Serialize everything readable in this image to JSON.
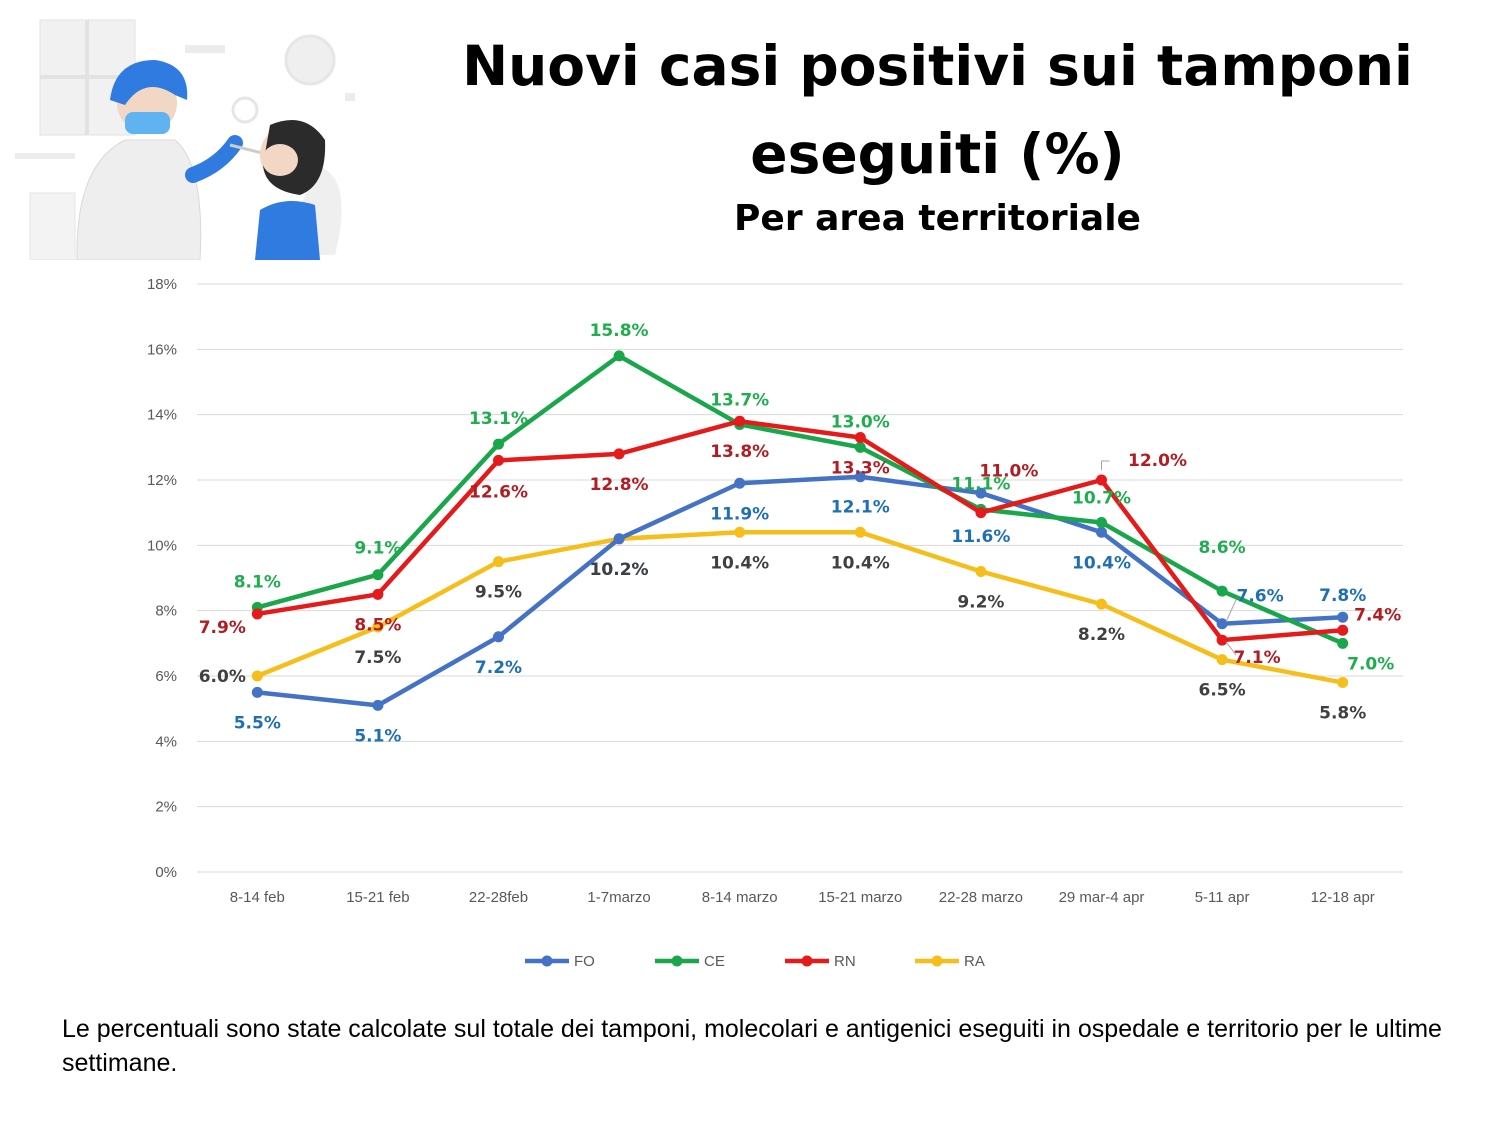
{
  "title": "Nuovi casi positivi sui tamponi eseguiti (%)",
  "subtitle": "Per area territoriale",
  "footnote": "Le percentuali sono state calcolate sul totale dei tamponi, molecolari e antigenici eseguiti in ospedale e territorio per le ultime settimane.",
  "chart_data": {
    "type": "line",
    "title": "Nuovi casi positivi sui tamponi eseguiti (%)",
    "subtitle": "Per area territoriale",
    "xlabel": "",
    "ylabel": "",
    "ylim": [
      0,
      18
    ],
    "yticks": [
      "0%",
      "2%",
      "4%",
      "6%",
      "8%",
      "10%",
      "12%",
      "14%",
      "16%",
      "18%"
    ],
    "grid": true,
    "legend": "bottom",
    "categories": [
      "8-14 feb",
      "15-21 feb",
      "22-28feb",
      "1-7marzo",
      "8-14 marzo",
      "15-21 marzo",
      "22-28 marzo",
      "29 mar-4 apr",
      "5-11 apr",
      "12-18 apr"
    ],
    "series": [
      {
        "name": "FO",
        "color": "#4472C4",
        "labelColor": "#1F6FB4",
        "values": [
          5.5,
          5.1,
          7.2,
          10.2,
          11.9,
          12.1,
          11.6,
          10.4,
          7.6,
          7.8
        ],
        "labels": [
          "5.5%",
          "5.1%",
          "7.2%",
          "10.2%",
          "11.9%",
          "12.1%",
          "11.6%",
          "10.4%",
          "7.6%",
          "7.8%"
        ]
      },
      {
        "name": "CE",
        "color": "#1AA64A",
        "labelColor": "#1FAE4E",
        "values": [
          8.1,
          9.1,
          13.1,
          15.8,
          13.7,
          13.0,
          11.1,
          10.7,
          8.6,
          7.0
        ],
        "labels": [
          "8.1%",
          "9.1%",
          "13.1%",
          "15.8%",
          "13.7%",
          "13.0%",
          "11.1%",
          "10.7%",
          "8.6%",
          "7.0%"
        ]
      },
      {
        "name": "RN",
        "color": "#E51A1A",
        "labelColor": "#B01E23",
        "values": [
          7.9,
          8.5,
          12.6,
          12.8,
          13.8,
          13.3,
          11.0,
          12.0,
          7.1,
          7.4
        ],
        "labels": [
          "7.9%",
          "8.5%",
          "12.6%",
          "12.8%",
          "13.8%",
          "13.3%",
          "11.0%",
          "12.0%",
          "7.1%",
          "7.4%"
        ]
      },
      {
        "name": "RA",
        "color": "#F6BE1A",
        "labelColor": "#404040",
        "values": [
          6.0,
          7.5,
          9.5,
          10.2,
          10.4,
          10.4,
          9.2,
          8.2,
          6.5,
          5.8
        ],
        "labels": [
          "6.0%",
          "7.5%",
          "9.5%",
          "10.2%",
          "10.4%",
          "10.4%",
          "9.2%",
          "8.2%",
          "6.5%",
          "5.8%"
        ]
      }
    ]
  }
}
